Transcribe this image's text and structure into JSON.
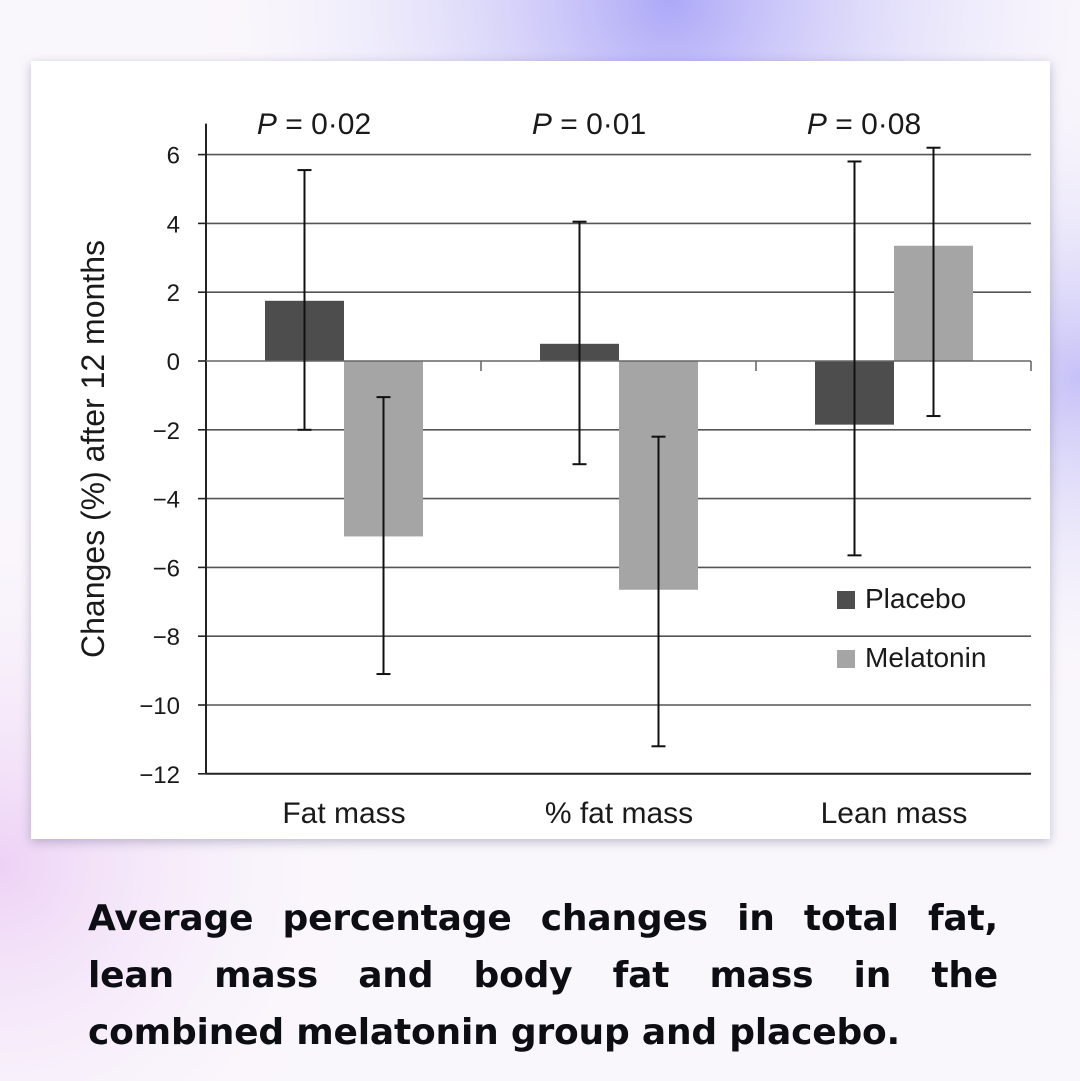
{
  "caption": "Average percentage changes in total fat, lean mass and body fat mass in the combined melatonin group and placebo.",
  "chart_data": {
    "type": "bar",
    "ylabel": "Changes (%) after 12 months",
    "xlabel": "",
    "ylim": [
      -12,
      7
    ],
    "yticks": [
      6,
      4,
      2,
      0,
      -2,
      -4,
      -6,
      -8,
      -10,
      -12
    ],
    "ytick_labels": [
      "6",
      "4",
      "2",
      "0",
      "−2",
      "−4",
      "−6",
      "−8",
      "−10",
      "−12"
    ],
    "grid": true,
    "legend_position": "bottom-right",
    "categories": [
      "Fat mass",
      "% fat mass",
      "Lean mass"
    ],
    "p_values": [
      {
        "prefix": "P",
        "text": " = 0·02"
      },
      {
        "prefix": "P",
        "text": " = 0·01"
      },
      {
        "prefix": "P",
        "text": " = 0·08"
      }
    ],
    "series": [
      {
        "name": "Placebo",
        "color": "#4d4d4d",
        "values": [
          1.75,
          0.5,
          -1.85
        ],
        "error_low": [
          -2.0,
          -3.0,
          -5.65
        ],
        "error_high": [
          5.55,
          4.05,
          5.8
        ]
      },
      {
        "name": "Melatonin",
        "color": "#a5a5a5",
        "values": [
          -5.1,
          -6.65,
          3.35
        ],
        "error_low": [
          -9.1,
          -11.2,
          -1.6
        ],
        "error_high": [
          -1.05,
          -2.2,
          6.2
        ]
      }
    ]
  }
}
